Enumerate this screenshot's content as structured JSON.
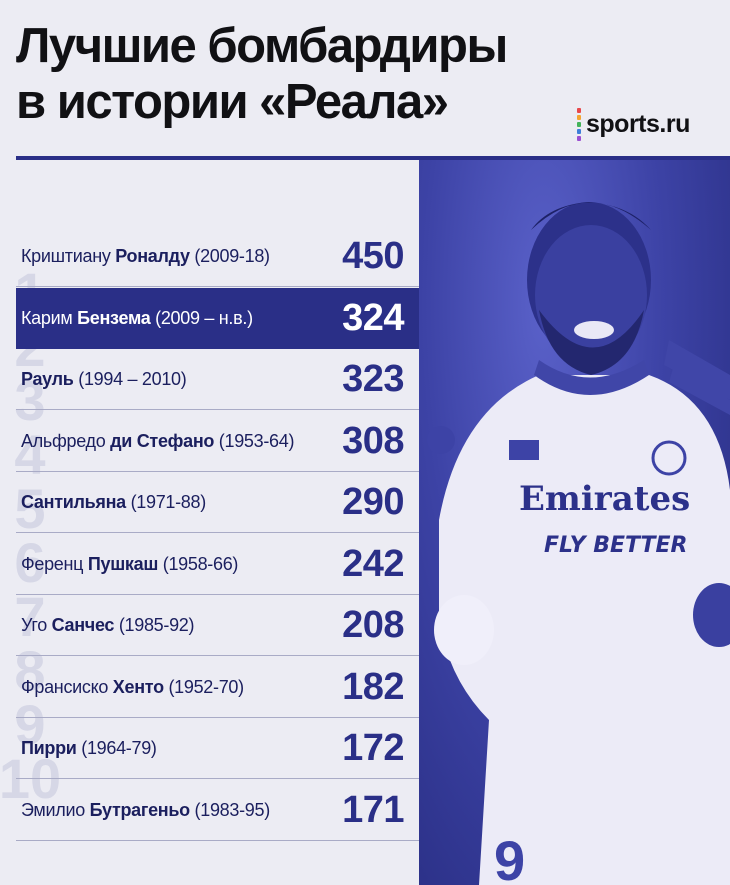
{
  "title": {
    "line1": "Лучшие бомбардиры",
    "line2": "в истории «Реала»"
  },
  "logo": {
    "text": "sports.ru",
    "dot_colors": [
      "#e8484b",
      "#f4a531",
      "#42b35a",
      "#3d7fd9",
      "#9b4fd1"
    ]
  },
  "ranks": [
    "1",
    "2",
    "3",
    "4",
    "5",
    "6",
    "7",
    "8",
    "9",
    "10"
  ],
  "photo": {
    "sponsor": "Emirates",
    "slogan": "FLY BETTER"
  },
  "colors": {
    "accent": "#2a2f87",
    "background": "#ececf3",
    "title": "#111114"
  },
  "players": [
    {
      "first": "Криштиану ",
      "last": "Роналду",
      "years": " (2009-18)",
      "goals": "450",
      "highlight": false
    },
    {
      "first": "Карим ",
      "last": "Бензема",
      "years": " (2009 – н.в.)",
      "goals": "324",
      "highlight": true
    },
    {
      "first": "",
      "last": "Рауль",
      "years": " (1994 – 2010)",
      "goals": "323",
      "highlight": false
    },
    {
      "first": "Альфредо ",
      "last": "ди Стефано",
      "years": " (1953-64)",
      "goals": "308",
      "highlight": false
    },
    {
      "first": "",
      "last": "Сантильяна",
      "years": " (1971-88)",
      "goals": "290",
      "highlight": false
    },
    {
      "first": "Ференц ",
      "last": "Пушкаш",
      "years": " (1958-66)",
      "goals": "242",
      "highlight": false
    },
    {
      "first": "Уго ",
      "last": "Санчес",
      "years": " (1985-92)",
      "goals": "208",
      "highlight": false
    },
    {
      "first": "Франсиско ",
      "last": "Хенто",
      "years": " (1952-70)",
      "goals": "182",
      "highlight": false
    },
    {
      "first": "",
      "last": "Пирри",
      "years": " (1964-79)",
      "goals": "172",
      "highlight": false
    },
    {
      "first": "Эмилио ",
      "last": "Бутрагеньо",
      "years": " (1983-95)",
      "goals": "171",
      "highlight": false
    }
  ]
}
